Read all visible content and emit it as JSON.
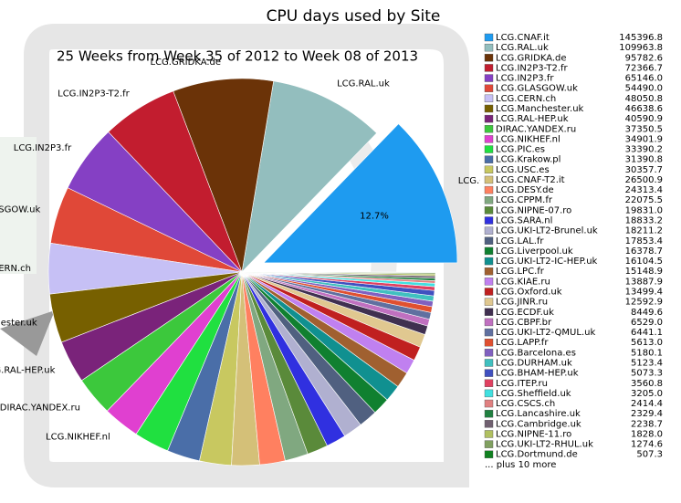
{
  "chart_data": {
    "type": "pie",
    "title": "CPU days used by Site",
    "subtitle": "25 Weeks from Week 35 of 2012 to Week 08 of 2013",
    "categories": [
      "LCG.CNAF.it",
      "LCG.RAL.uk",
      "LCG.GRIDKA.de",
      "LCG.IN2P3-T2.fr",
      "LCG.IN2P3.fr",
      "LCG.GLASGOW.uk",
      "LCG.CERN.ch",
      "LCG.Manchester.uk",
      "LCG.RAL-HEP.uk",
      "DIRAC.YANDEX.ru",
      "LCG.NIKHEF.nl",
      "LCG.PIC.es",
      "LCG.Krakow.pl",
      "LCG.USC.es",
      "LCG.CNAF-T2.it",
      "LCG.DESY.de",
      "LCG.CPPM.fr",
      "LCG.NIPNE-07.ro",
      "LCG.SARA.nl",
      "LCG.UKI-LT2-Brunel.uk",
      "LCG.LAL.fr",
      "LCG.Liverpool.uk",
      "LCG.UKI-LT2-IC-HEP.uk",
      "LCG.LPC.fr",
      "LCG.KIAE.ru",
      "LCG.Oxford.uk",
      "LCG.JINR.ru",
      "LCG.ECDF.uk",
      "LCG.CBPF.br",
      "LCG.UKI-LT2-QMUL.uk",
      "LCG.LAPP.fr",
      "LCG.Barcelona.es",
      "LCG.DURHAM.uk",
      "LCG.BHAM-HEP.uk",
      "LCG.ITEP.ru",
      "LCG.Sheffield.uk",
      "LCG.CSCS.ch",
      "LCG.Lancashire.uk",
      "LCG.Cambridge.uk",
      "LCG.NIPNE-11.ro",
      "LCG.UKI-LT2-RHUL.uk",
      "LCG.Dortmund.de"
    ],
    "values": [
      145396.8,
      109963.8,
      95782.6,
      72366.7,
      65146.0,
      54490.0,
      48050.8,
      46638.6,
      40590.9,
      37350.5,
      34901.9,
      33390.2,
      31390.8,
      30357.7,
      26500.9,
      24313.4,
      22075.5,
      19831.0,
      18833.2,
      18211.2,
      17853.4,
      16378.7,
      16104.5,
      15148.9,
      13887.9,
      13499.4,
      12592.9,
      8449.6,
      6529.0,
      6441.1,
      5613.0,
      5180.1,
      5123.4,
      5073.3,
      3560.8,
      3205.0,
      2414.4,
      2329.4,
      2238.7,
      1828.0,
      1274.6,
      507.3
    ],
    "value_labels": [
      "145396.8",
      "109963.8",
      "95782.6",
      "72366.7",
      "65146.0",
      "54490.0",
      "48050.8",
      "46638.6",
      "40590.9",
      "37350.5",
      "34901.9",
      "33390.2",
      "31390.8",
      "30357.7",
      "26500.9",
      "24313.4",
      "22075.5",
      "19831.0",
      "18833.2",
      "18211.2",
      "17853.4",
      "16378.7",
      "16104.5",
      "15148.9",
      "13887.9",
      "13499.4",
      "12592.9",
      "8449.6",
      "6529.0",
      "6441.1",
      "5613.0",
      "5180.1",
      "5123.4",
      "5073.3",
      "3560.8",
      "3205.0",
      "2414.4",
      "2329.4",
      "2238.7",
      "1828.0",
      "1274.6",
      "507.3"
    ],
    "colors": [
      "#1e9bf0",
      "#93bebe",
      "#6b3308",
      "#c21d2f",
      "#8540c4",
      "#e04838",
      "#c6c0f5",
      "#776000",
      "#7a237a",
      "#3cc83c",
      "#e040d0",
      "#20e040",
      "#4a6ea8",
      "#c8c860",
      "#d4c078",
      "#ff8060",
      "#80a880",
      "#5a8a3a",
      "#3030e0",
      "#b0b0d0",
      "#506080",
      "#108030",
      "#109090",
      "#a06030",
      "#c080f0",
      "#c02020",
      "#e0c890",
      "#403050",
      "#c070c0",
      "#6070a0",
      "#e05030",
      "#8060c0",
      "#40c0c0",
      "#4050c0",
      "#e04060",
      "#40e0e0",
      "#e08080",
      "#208040",
      "#706070",
      "#b0c060",
      "#80a060",
      "#108020"
    ],
    "annotations": [
      "12.7%"
    ],
    "footnote": "... plus 10 more"
  }
}
